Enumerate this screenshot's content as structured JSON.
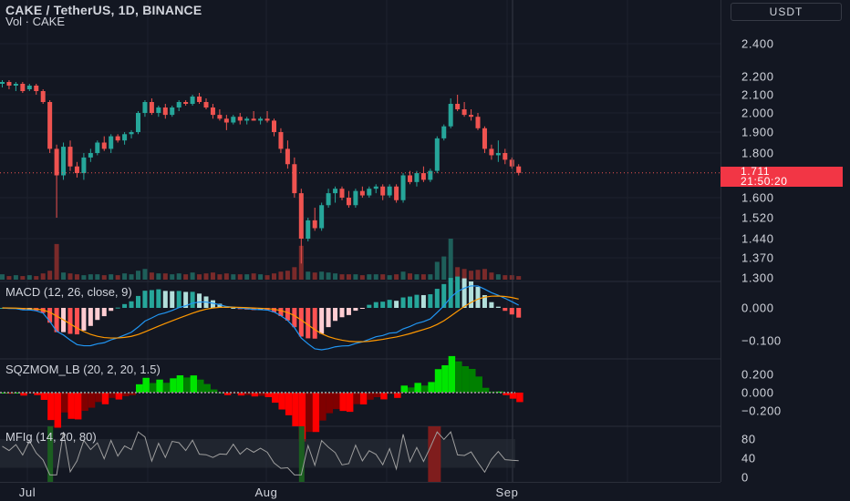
{
  "header": {
    "title": "CAKE / TetherUS, 1D, BINANCE",
    "volume_label": "Vol · CAKE"
  },
  "indicators": {
    "macd": "MACD (12, 26, close, 9)",
    "sqzmom": "SQZMOM_LB (20, 2, 20, 1.5)",
    "mfi": "MFIg (14, 20, 80)"
  },
  "price_axis": {
    "currency": "USDT",
    "ticks": [
      "2.400",
      "2.200",
      "2.100",
      "2.000",
      "1.900",
      "1.800",
      "1.600",
      "1.520",
      "1.440",
      "1.370",
      "1.300"
    ],
    "last_price": "1.711",
    "countdown": "21:50:20"
  },
  "macd_axis": {
    "ticks": [
      "0.000",
      "−0.100"
    ]
  },
  "sqz_axis": {
    "ticks": [
      "0.200",
      "0.000",
      "−0.200"
    ]
  },
  "mfi_axis": {
    "ticks": [
      "80",
      "40",
      "0"
    ]
  },
  "time_axis": {
    "labels": [
      "Jul",
      "Aug",
      "Sep"
    ]
  },
  "colors": {
    "background": "#131722",
    "up": "#26a69a",
    "down": "#ef5350",
    "macd_line": "#2196f3",
    "signal_line": "#ff9800",
    "sqz_up_strong": "#00e600",
    "sqz_up_weak": "#008000",
    "sqz_down_strong": "#ff0000",
    "sqz_down_weak": "#800000",
    "price_label": "#f23645"
  },
  "chart_data": {
    "type": "candlestick",
    "symbol": "CAKE / TetherUS",
    "interval": "1D",
    "exchange": "BINANCE",
    "candles_ohlc": [
      [
        2.16,
        2.18,
        2.14,
        2.17
      ],
      [
        2.17,
        2.18,
        2.13,
        2.15
      ],
      [
        2.15,
        2.17,
        2.12,
        2.16
      ],
      [
        2.16,
        2.17,
        2.11,
        2.12
      ],
      [
        2.13,
        2.16,
        2.12,
        2.15
      ],
      [
        2.15,
        2.16,
        2.1,
        2.12
      ],
      [
        2.12,
        2.13,
        2.05,
        2.06
      ],
      [
        2.06,
        2.07,
        1.8,
        1.82
      ],
      [
        1.82,
        1.84,
        1.52,
        1.7
      ],
      [
        1.7,
        1.85,
        1.68,
        1.83
      ],
      [
        1.83,
        1.86,
        1.72,
        1.74
      ],
      [
        1.74,
        1.76,
        1.69,
        1.71
      ],
      [
        1.71,
        1.8,
        1.68,
        1.78
      ],
      [
        1.78,
        1.82,
        1.76,
        1.8
      ],
      [
        1.8,
        1.86,
        1.79,
        1.85
      ],
      [
        1.85,
        1.88,
        1.81,
        1.82
      ],
      [
        1.82,
        1.89,
        1.8,
        1.88
      ],
      [
        1.88,
        1.89,
        1.85,
        1.86
      ],
      [
        1.86,
        1.9,
        1.84,
        1.89
      ],
      [
        1.89,
        1.91,
        1.87,
        1.9
      ],
      [
        1.9,
        2.01,
        1.89,
        2.0
      ],
      [
        2.0,
        2.07,
        1.98,
        2.06
      ],
      [
        2.06,
        2.08,
        1.99,
        2.0
      ],
      [
        2.0,
        2.04,
        1.98,
        2.03
      ],
      [
        2.03,
        2.05,
        1.97,
        1.99
      ],
      [
        1.99,
        2.04,
        1.98,
        2.03
      ],
      [
        2.03,
        2.07,
        2.01,
        2.06
      ],
      [
        2.06,
        2.07,
        2.04,
        2.05
      ],
      [
        2.05,
        2.1,
        2.04,
        2.09
      ],
      [
        2.09,
        2.11,
        2.05,
        2.06
      ],
      [
        2.06,
        2.08,
        2.02,
        2.03
      ],
      [
        2.03,
        2.05,
        1.97,
        1.99
      ],
      [
        1.99,
        2.02,
        1.96,
        1.97
      ],
      [
        1.97,
        1.99,
        1.91,
        1.95
      ],
      [
        1.95,
        1.99,
        1.94,
        1.98
      ],
      [
        1.98,
        2.0,
        1.94,
        1.96
      ],
      [
        1.96,
        1.98,
        1.94,
        1.97
      ],
      [
        1.97,
        2.01,
        1.96,
        1.96
      ],
      [
        1.96,
        1.98,
        1.94,
        1.97
      ],
      [
        1.97,
        2.01,
        1.95,
        1.96
      ],
      [
        1.96,
        1.97,
        1.88,
        1.9
      ],
      [
        1.9,
        1.92,
        1.8,
        1.82
      ],
      [
        1.82,
        1.86,
        1.73,
        1.75
      ],
      [
        1.75,
        1.78,
        1.6,
        1.62
      ],
      [
        1.62,
        1.64,
        1.35,
        1.44
      ],
      [
        1.44,
        1.52,
        1.43,
        1.51
      ],
      [
        1.51,
        1.56,
        1.47,
        1.48
      ],
      [
        1.48,
        1.58,
        1.47,
        1.57
      ],
      [
        1.57,
        1.64,
        1.56,
        1.62
      ],
      [
        1.62,
        1.65,
        1.58,
        1.64
      ],
      [
        1.64,
        1.65,
        1.59,
        1.6
      ],
      [
        1.6,
        1.63,
        1.56,
        1.57
      ],
      [
        1.57,
        1.64,
        1.56,
        1.63
      ],
      [
        1.63,
        1.65,
        1.6,
        1.61
      ],
      [
        1.61,
        1.65,
        1.6,
        1.64
      ],
      [
        1.64,
        1.66,
        1.62,
        1.65
      ],
      [
        1.65,
        1.66,
        1.59,
        1.61
      ],
      [
        1.61,
        1.66,
        1.6,
        1.65
      ],
      [
        1.65,
        1.66,
        1.58,
        1.59
      ],
      [
        1.59,
        1.71,
        1.58,
        1.7
      ],
      [
        1.7,
        1.72,
        1.66,
        1.67
      ],
      [
        1.67,
        1.72,
        1.65,
        1.71
      ],
      [
        1.71,
        1.74,
        1.67,
        1.68
      ],
      [
        1.68,
        1.73,
        1.67,
        1.72
      ],
      [
        1.72,
        1.88,
        1.71,
        1.87
      ],
      [
        1.87,
        1.94,
        1.86,
        1.93
      ],
      [
        1.93,
        2.08,
        1.92,
        2.05
      ],
      [
        2.05,
        2.1,
        2.01,
        2.02
      ],
      [
        2.02,
        2.06,
        1.98,
        1.99
      ],
      [
        1.99,
        2.02,
        1.96,
        1.98
      ],
      [
        1.98,
        2.0,
        1.91,
        1.92
      ],
      [
        1.92,
        1.93,
        1.8,
        1.82
      ],
      [
        1.82,
        1.84,
        1.77,
        1.79
      ],
      [
        1.79,
        1.86,
        1.76,
        1.8
      ],
      [
        1.8,
        1.82,
        1.75,
        1.77
      ],
      [
        1.77,
        1.78,
        1.73,
        1.74
      ],
      [
        1.74,
        1.75,
        1.7,
        1.711
      ]
    ],
    "volume": [
      6,
      4,
      5,
      4,
      5,
      4,
      7,
      10,
      40,
      8,
      7,
      6,
      5,
      6,
      6,
      5,
      6,
      5,
      7,
      6,
      10,
      12,
      8,
      7,
      7,
      6,
      7,
      6,
      8,
      6,
      7,
      8,
      6,
      7,
      6,
      6,
      6,
      7,
      6,
      5,
      7,
      9,
      10,
      14,
      38,
      9,
      8,
      9,
      8,
      7,
      6,
      6,
      6,
      5,
      6,
      6,
      6,
      5,
      6,
      9,
      7,
      6,
      6,
      6,
      20,
      26,
      46,
      14,
      12,
      10,
      11,
      12,
      8,
      6,
      5,
      5,
      4
    ],
    "price_range": [
      1.3,
      2.45
    ],
    "last_price": 1.711
  }
}
